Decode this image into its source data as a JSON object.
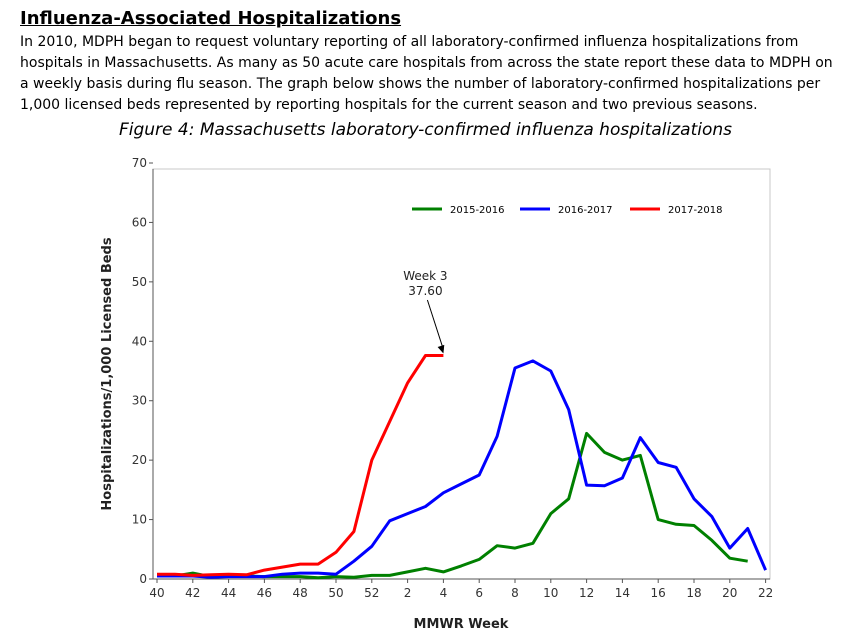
{
  "section": {
    "heading": "Influenza-Associated Hospitalizations",
    "paragraph": "In 2010, MDPH began to request voluntary reporting of all laboratory-confirmed influenza hospitalizations from hospitals in Massachusetts.  As many as 50 acute care hospitals from across the state report these data to MDPH on a weekly basis during flu season.  The graph below shows the number of laboratory-confirmed hospitalizations per 1,000 licensed beds represented by reporting hospitals for the current season and two previous seasons."
  },
  "figure": {
    "title": "Figure 4: Massachusetts laboratory-confirmed influenza hospitalizations"
  },
  "chart_data": {
    "type": "line",
    "title": "Figure 4: Massachusetts laboratory-confirmed influenza hospitalizations",
    "xlabel": "MMWR Week",
    "ylabel": "Hospitalizations/1,000 Licensed Beds",
    "x_tick_labels": [
      "40",
      "42",
      "44",
      "46",
      "48",
      "50",
      "52",
      "2",
      "4",
      "6",
      "8",
      "10",
      "12",
      "14",
      "16",
      "18",
      "20",
      "22"
    ],
    "y_ticks": [
      0,
      10,
      20,
      30,
      40,
      50,
      60,
      70
    ],
    "ylim": [
      0,
      70
    ],
    "x_note": "x positions are sequential week index: 0 = week 40, 13 = week 1 (after week 52), 33 = week 21",
    "xlim": [
      0,
      34
    ],
    "legend_position": "top-right",
    "series": [
      {
        "name": "2015-2016",
        "color": "#008000",
        "x": [
          0,
          1,
          2,
          3,
          4,
          5,
          6,
          7,
          8,
          9,
          10,
          11,
          12,
          13,
          14,
          15,
          16,
          17,
          18,
          19,
          20,
          21,
          22,
          23,
          24,
          25,
          26,
          27,
          28,
          29,
          30,
          31,
          32,
          33
        ],
        "values": [
          0.5,
          0.5,
          1.0,
          0.4,
          0.5,
          0.5,
          0.4,
          0.4,
          0.4,
          0.2,
          0.4,
          0.3,
          0.6,
          0.6,
          1.2,
          1.8,
          1.2,
          2.2,
          3.3,
          5.6,
          5.2,
          6.0,
          11.0,
          13.5,
          24.5,
          21.3,
          20.0,
          20.8,
          10.0,
          9.2,
          9.0,
          6.5,
          3.5,
          3.0
        ]
      },
      {
        "name": "2016-2017",
        "color": "#0000ff",
        "x": [
          0,
          1,
          2,
          3,
          4,
          5,
          6,
          7,
          8,
          9,
          10,
          11,
          12,
          13,
          14,
          15,
          16,
          17,
          18,
          19,
          20,
          21,
          22,
          23,
          24,
          25,
          26,
          27,
          28,
          29,
          30,
          31,
          32,
          33,
          34
        ],
        "values": [
          0.5,
          0.5,
          0.5,
          0.3,
          0.4,
          0.4,
          0.4,
          0.8,
          1.0,
          1.0,
          0.8,
          3.0,
          5.5,
          9.8,
          11.0,
          12.2,
          14.5,
          16.0,
          17.5,
          24.0,
          35.5,
          36.7,
          35.0,
          28.5,
          15.8,
          15.7,
          17.0,
          23.8,
          19.6,
          18.8,
          13.5,
          10.5,
          5.2,
          8.5,
          1.5
        ]
      },
      {
        "name": "2017-2018",
        "color": "#ff0000",
        "x": [
          0,
          1,
          2,
          3,
          4,
          5,
          6,
          7,
          8,
          9,
          10,
          11,
          12,
          13,
          14,
          15,
          16
        ],
        "values": [
          0.8,
          0.8,
          0.6,
          0.7,
          0.8,
          0.7,
          1.5,
          2.0,
          2.5,
          2.5,
          4.5,
          8.0,
          20.0,
          26.5,
          33.0,
          37.6,
          37.6
        ]
      }
    ],
    "annotations": [
      {
        "label_line1": "Week 3",
        "label_line2": "37.60",
        "target_x": 16,
        "target_y": 37.6
      }
    ]
  }
}
